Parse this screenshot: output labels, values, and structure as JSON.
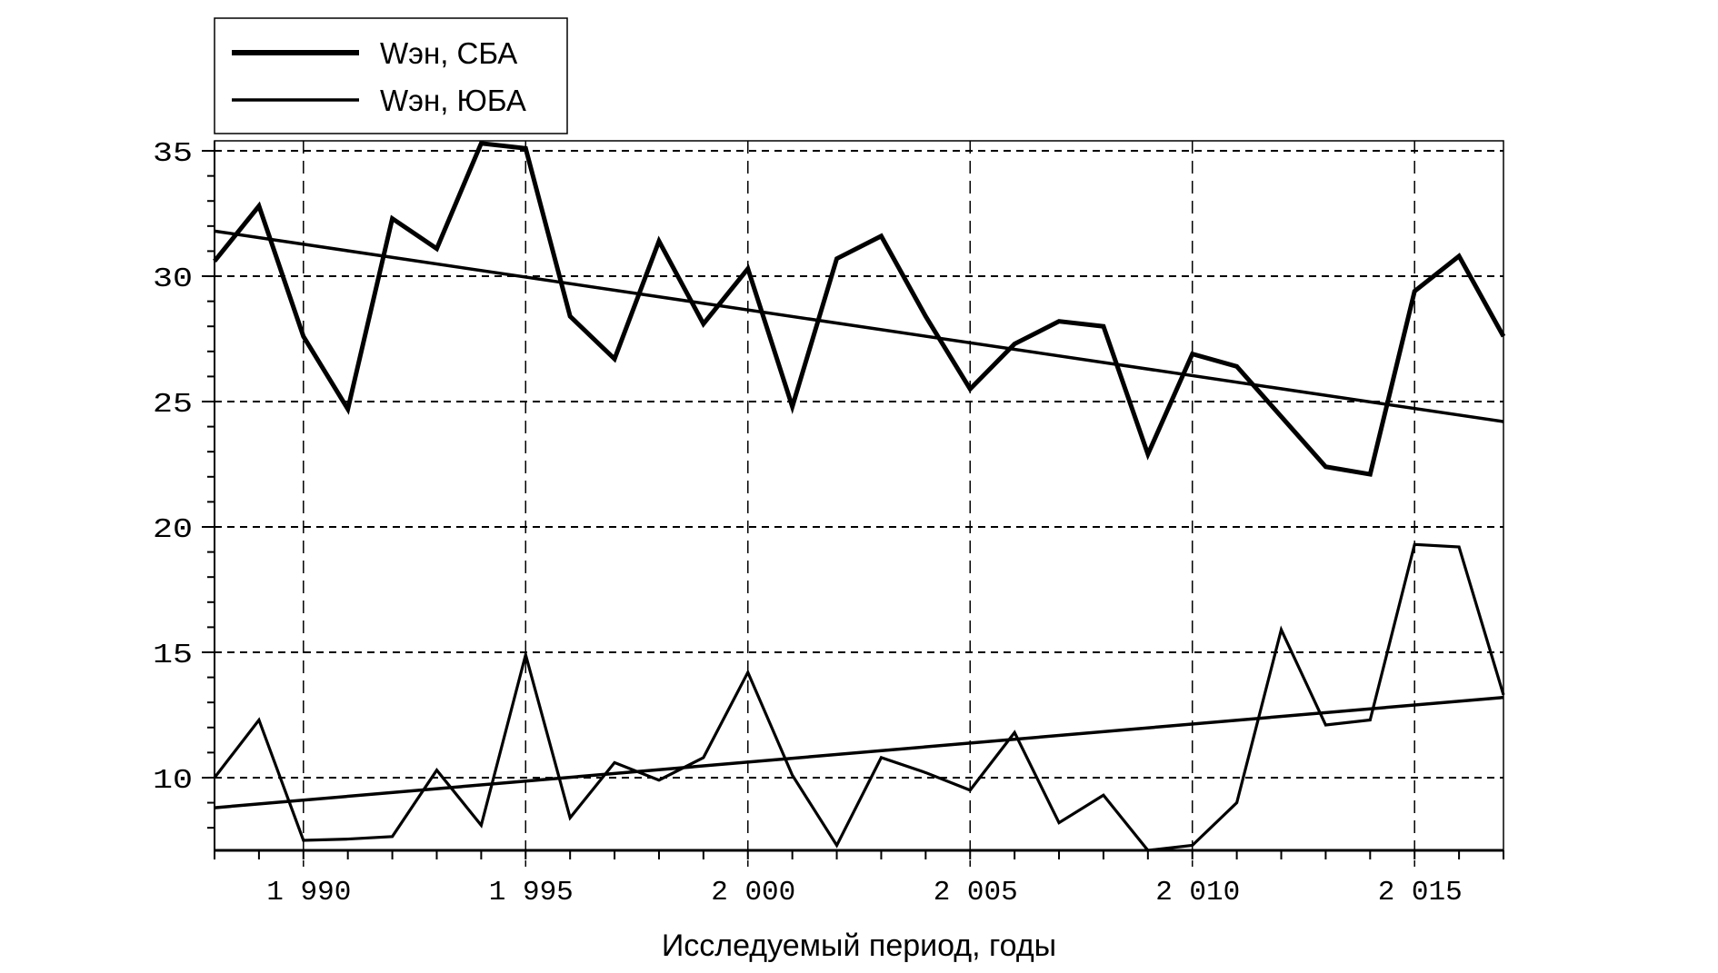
{
  "chart_data": {
    "type": "line",
    "title": "",
    "xlabel": "Исследуемый период, годы",
    "ylabel": "",
    "xlim": [
      1988,
      2017
    ],
    "ylim": [
      7.1,
      35.4
    ],
    "grid": true,
    "legend_position": "top-left",
    "x_ticks": [
      1990,
      1995,
      2000,
      2005,
      2010,
      2015
    ],
    "x_tick_labels": [
      "1 990",
      "1 995",
      "2 000",
      "2 005",
      "2 010",
      "2 015"
    ],
    "y_ticks": [
      10,
      15,
      20,
      25,
      30,
      35
    ],
    "y_tick_labels": [
      "10",
      "15",
      "20",
      "25",
      "30",
      "35"
    ],
    "x": [
      1988,
      1989,
      1990,
      1991,
      1992,
      1993,
      1994,
      1995,
      1996,
      1997,
      1998,
      1999,
      2000,
      2001,
      2002,
      2003,
      2004,
      2005,
      2006,
      2007,
      2008,
      2009,
      2010,
      2011,
      2012,
      2013,
      2014,
      2015,
      2016,
      2017
    ],
    "series": [
      {
        "name": "Wэн, СБА",
        "style": "thick",
        "values": [
          30.6,
          32.8,
          27.6,
          24.7,
          32.3,
          31.1,
          35.3,
          35.1,
          28.4,
          26.7,
          31.4,
          28.1,
          30.3,
          24.8,
          30.7,
          31.6,
          28.4,
          25.5,
          27.3,
          28.2,
          28.0,
          22.9,
          26.9,
          26.4,
          24.4,
          22.4,
          22.1,
          29.4,
          30.8,
          27.6
        ],
        "trend": [
          31.8,
          24.2
        ]
      },
      {
        "name": "Wэн, ЮБА",
        "style": "thin",
        "values": [
          10.0,
          12.3,
          7.5,
          7.55,
          7.65,
          10.3,
          8.1,
          14.9,
          8.4,
          10.6,
          9.9,
          10.8,
          14.2,
          10.1,
          7.3,
          10.8,
          10.2,
          9.5,
          11.8,
          8.2,
          9.3,
          7.1,
          7.3,
          9.0,
          15.9,
          12.1,
          12.3,
          19.3,
          19.2,
          13.3
        ],
        "trend": [
          8.8,
          13.2
        ]
      }
    ]
  }
}
